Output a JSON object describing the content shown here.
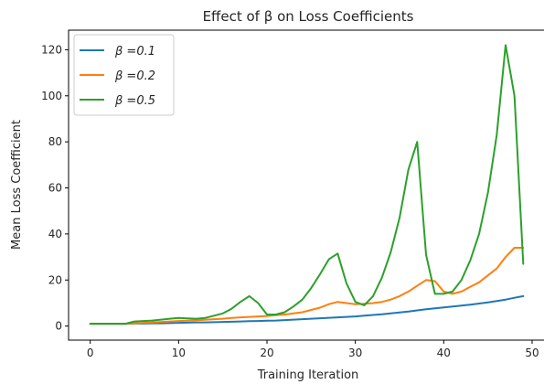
{
  "chart_data": {
    "type": "line",
    "title": "Effect of β on Loss Coefficients",
    "xlabel": "Training Iteration",
    "ylabel": "Mean Loss Coefficient",
    "xlim": [
      -2.45,
      51.45
    ],
    "ylim": [
      -6.1,
      128.5
    ],
    "xticks": [
      0,
      10,
      20,
      30,
      40,
      50
    ],
    "yticks": [
      0,
      20,
      40,
      60,
      80,
      100,
      120
    ],
    "grid": false,
    "legend": {
      "placement": "top-left"
    },
    "x": [
      0,
      1,
      2,
      3,
      4,
      5,
      6,
      7,
      8,
      9,
      10,
      11,
      12,
      13,
      14,
      15,
      16,
      17,
      18,
      19,
      20,
      21,
      22,
      23,
      24,
      25,
      26,
      27,
      28,
      29,
      30,
      31,
      32,
      33,
      34,
      35,
      36,
      37,
      38,
      39,
      40,
      41,
      42,
      43,
      44,
      45,
      46,
      47,
      48,
      49
    ],
    "series": [
      {
        "name": "β =0.1",
        "color": "#1f77b4",
        "values": [
          1.0,
          1.0,
          1.0,
          1.0,
          1.0,
          1.1,
          1.1,
          1.2,
          1.2,
          1.3,
          1.4,
          1.5,
          1.6,
          1.6,
          1.7,
          1.8,
          1.9,
          2.0,
          2.1,
          2.2,
          2.3,
          2.4,
          2.6,
          2.8,
          3.0,
          3.2,
          3.4,
          3.6,
          3.8,
          4.0,
          4.2,
          4.5,
          4.8,
          5.1,
          5.5,
          5.9,
          6.3,
          6.8,
          7.3,
          7.7,
          8.1,
          8.5,
          8.9,
          9.3,
          9.8,
          10.3,
          10.9,
          11.5,
          12.3,
          13.0
        ]
      },
      {
        "name": "β =0.2",
        "color": "#ff7f0e",
        "values": [
          1.0,
          1.0,
          1.0,
          1.0,
          1.0,
          1.2,
          1.4,
          1.6,
          1.8,
          2.0,
          2.2,
          2.3,
          2.5,
          2.7,
          3.0,
          3.2,
          3.5,
          3.8,
          4.0,
          4.2,
          4.4,
          4.7,
          5.0,
          5.5,
          6.0,
          7.0,
          8.0,
          9.5,
          10.5,
          10.0,
          9.5,
          9.7,
          10.0,
          10.5,
          11.5,
          13.0,
          15.0,
          17.5,
          20.0,
          19.5,
          15.0,
          14.0,
          15.0,
          17.0,
          19.0,
          22.0,
          25.0,
          30.0,
          34.0,
          34.0
        ]
      },
      {
        "name": "β =0.5",
        "color": "#2ca02c",
        "values": [
          1.0,
          1.0,
          1.0,
          1.0,
          1.0,
          2.0,
          2.2,
          2.4,
          2.8,
          3.2,
          3.5,
          3.3,
          3.2,
          3.5,
          4.5,
          5.5,
          7.5,
          10.5,
          13.0,
          10.0,
          5.0,
          5.0,
          6.0,
          8.5,
          11.5,
          16.5,
          22.5,
          29.0,
          31.5,
          18.5,
          10.5,
          9.0,
          13.0,
          21.0,
          32.0,
          47.0,
          68.0,
          80.0,
          31.0,
          14.0,
          14.0,
          15.0,
          20.0,
          28.5,
          40.0,
          58.0,
          83.0,
          122.0,
          100.0,
          27.0
        ]
      }
    ]
  }
}
